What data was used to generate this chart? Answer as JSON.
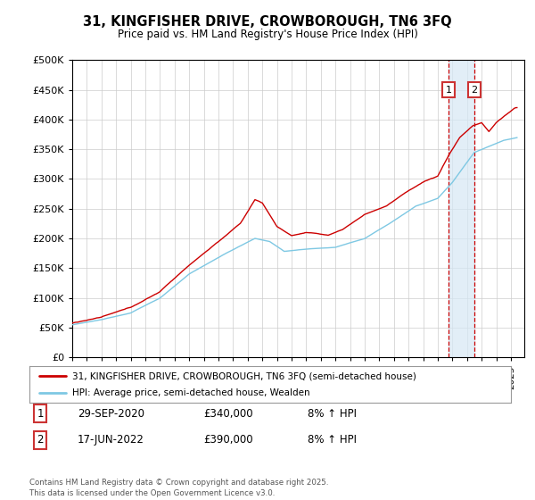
{
  "title": "31, KINGFISHER DRIVE, CROWBOROUGH, TN6 3FQ",
  "subtitle": "Price paid vs. HM Land Registry's House Price Index (HPI)",
  "hpi_color": "#7ec8e3",
  "price_color": "#cc0000",
  "marker1_label": "1",
  "marker2_label": "2",
  "marker1_date": "29-SEP-2020",
  "marker1_price": "£340,000",
  "marker1_change": "8% ↑ HPI",
  "marker2_date": "17-JUN-2022",
  "marker2_price": "£390,000",
  "marker2_change": "8% ↑ HPI",
  "legend_line1": "31, KINGFISHER DRIVE, CROWBOROUGH, TN6 3FQ (semi-detached house)",
  "legend_line2": "HPI: Average price, semi-detached house, Wealden",
  "footer": "Contains HM Land Registry data © Crown copyright and database right 2025.\nThis data is licensed under the Open Government Licence v3.0.",
  "bg_color": "#ffffff",
  "grid_color": "#cccccc",
  "shade_color": "#d6e8f5"
}
